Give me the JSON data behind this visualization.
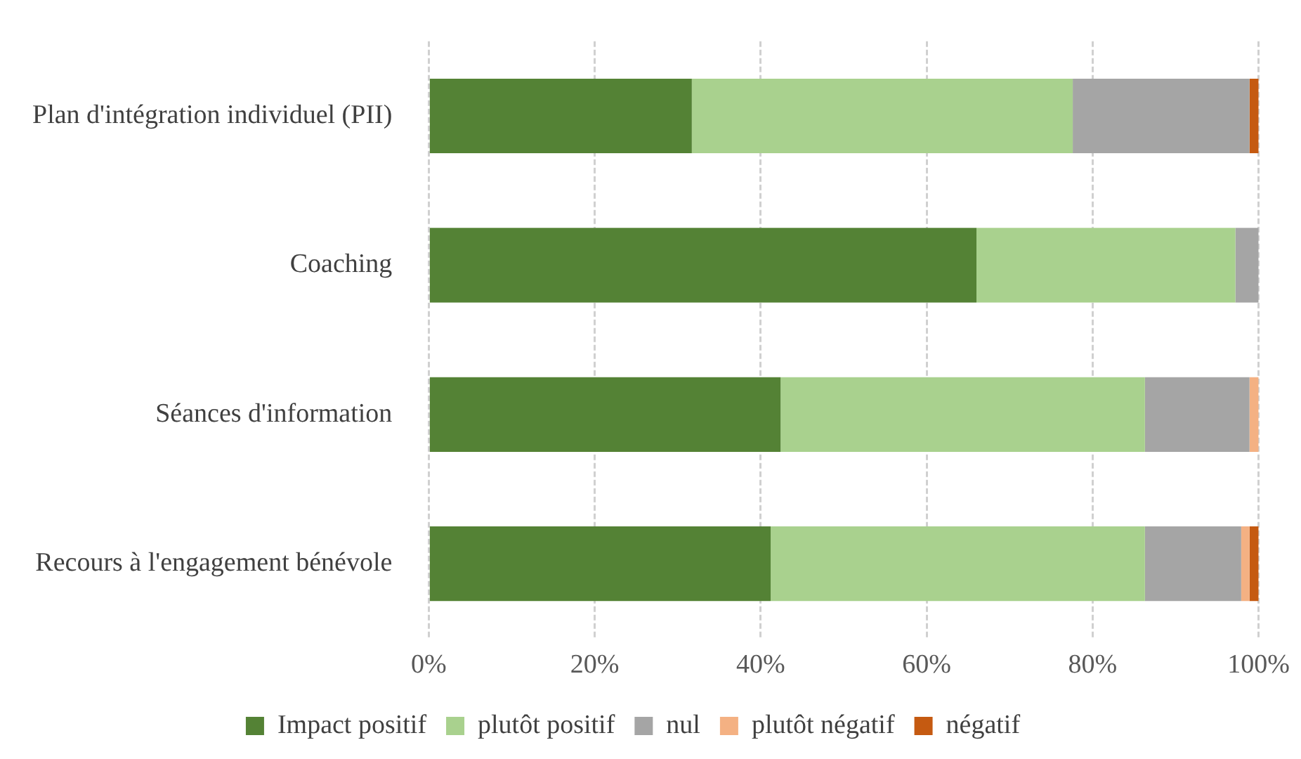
{
  "chart_data": {
    "type": "bar",
    "orientation": "horizontal",
    "stacked": true,
    "categories": [
      "Plan d'intégration individuel (PII)",
      "Coaching",
      "Séances d'information",
      "Recours à l'engagement bénévole"
    ],
    "series": [
      {
        "name": "Impact positif",
        "color": "#548235",
        "values": [
          31.7,
          66.0,
          42.4,
          41.2
        ]
      },
      {
        "name": "plutôt positif",
        "color": "#a9d18e",
        "values": [
          45.9,
          31.2,
          43.9,
          45.1
        ]
      },
      {
        "name": "nul",
        "color": "#a5a5a5",
        "values": [
          21.3,
          2.8,
          12.6,
          11.6
        ]
      },
      {
        "name": "plutôt négatif",
        "color": "#f4b183",
        "values": [
          0,
          0,
          1.1,
          1.0
        ]
      },
      {
        "name": "négatif",
        "color": "#c55a11",
        "values": [
          1.1,
          0,
          0,
          1.1
        ]
      }
    ],
    "xlim": [
      0,
      100
    ],
    "xticks": [
      {
        "value": 0,
        "label": "0%"
      },
      {
        "value": 20,
        "label": "20%"
      },
      {
        "value": 40,
        "label": "40%"
      },
      {
        "value": 60,
        "label": "60%"
      },
      {
        "value": 80,
        "label": "80%"
      },
      {
        "value": 100,
        "label": "100%"
      }
    ],
    "grid": "x",
    "legend": "bottom"
  }
}
